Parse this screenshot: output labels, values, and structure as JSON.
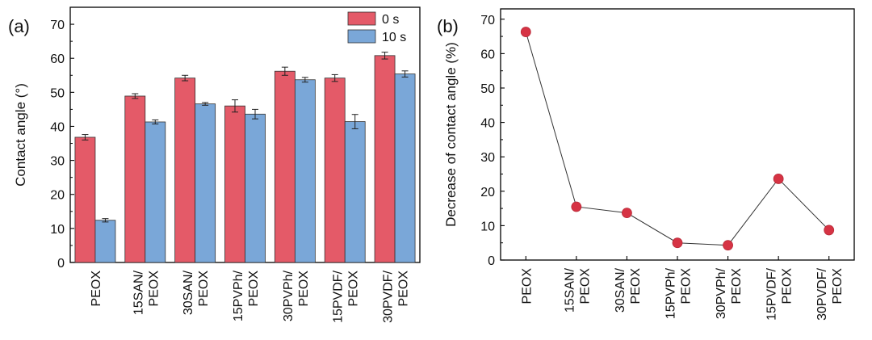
{
  "colors": {
    "bar_0s": "#e45a68",
    "bar_10s": "#7aa7d8",
    "point": "#d63344",
    "line": "#333333"
  },
  "chart_data": [
    {
      "panel_label": "(a)",
      "type": "bar",
      "categories": [
        "PEOX",
        "15SAN/\nPEOX",
        "30SAN/\nPEOX",
        "15PVPh/\nPEOX",
        "30PVPh/\nPEOX",
        "15PVDF/\nPEOX",
        "30PVDF/\nPEOX"
      ],
      "series": [
        {
          "name": "0 s",
          "values": [
            36.8,
            48.9,
            54.2,
            46.0,
            56.2,
            54.2,
            60.8
          ],
          "errors": [
            0.8,
            0.7,
            0.8,
            1.8,
            1.2,
            1.0,
            1.0
          ]
        },
        {
          "name": "10 s",
          "values": [
            12.4,
            41.3,
            46.6,
            43.6,
            53.7,
            41.4,
            55.4
          ],
          "errors": [
            0.5,
            0.6,
            0.4,
            1.4,
            0.7,
            2.1,
            0.9
          ]
        }
      ],
      "ylabel": "Contact angle (°)",
      "ylim": [
        0,
        75
      ],
      "yticks": [
        "0",
        "10",
        "20",
        "30",
        "40",
        "50",
        "60",
        "70"
      ],
      "grid": false,
      "legend_position": "top-right"
    },
    {
      "panel_label": "(b)",
      "type": "line",
      "categories": [
        "PEOX",
        "15SAN/\nPEOX",
        "30SAN/\nPEOX",
        "15PVPh/\nPEOX",
        "30PVPh/\nPEOX",
        "15PVDF/\nPEOX",
        "30PVDF/\nPEOX"
      ],
      "values": [
        66.3,
        15.5,
        13.7,
        5.0,
        4.3,
        23.6,
        8.7
      ],
      "ylabel": "Decrease of contact angle (%)",
      "ylim": [
        0,
        73
      ],
      "yticks": [
        "0",
        "10",
        "20",
        "30",
        "40",
        "50",
        "60",
        "70"
      ],
      "grid": false
    }
  ]
}
